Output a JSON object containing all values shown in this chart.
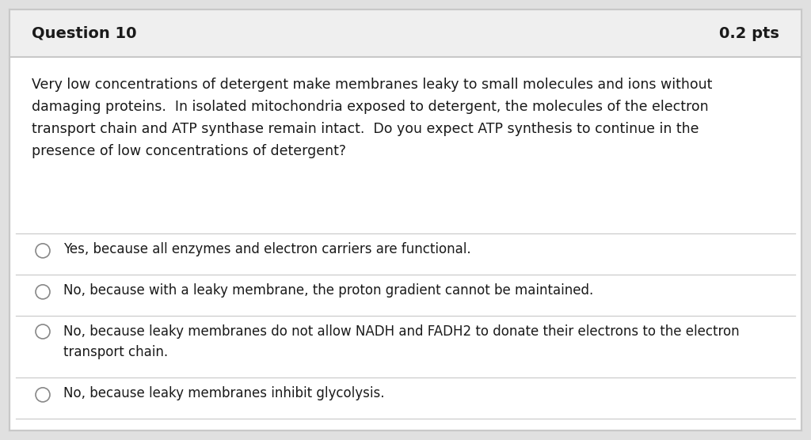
{
  "title_left": "Question 10",
  "title_right": "0.2 pts",
  "header_bg": "#efefef",
  "body_bg": "#ffffff",
  "outer_bg": "#e0e0e0",
  "border_color": "#c8c8c8",
  "title_font_size": 14,
  "body_font_size": 12.5,
  "option_font_size": 12,
  "question_lines": [
    "Very low concentrations of detergent make membranes leaky to small molecules and ions without",
    "damaging proteins.  In isolated mitochondria exposed to detergent, the molecules of the electron",
    "transport chain and ATP synthase remain intact.  Do you expect ATP synthesis to continue in the",
    "presence of low concentrations of detergent?"
  ],
  "options": [
    [
      "Yes, because all enzymes and electron carriers are functional."
    ],
    [
      "No, because with a leaky membrane, the proton gradient cannot be maintained."
    ],
    [
      "No, because leaky membranes do not allow NADH and FADH2 to donate their electrons to the electron",
      "transport chain."
    ],
    [
      "No, because leaky membranes inhibit glycolysis."
    ]
  ],
  "text_color": "#1a1a1a",
  "separator_color": "#cccccc",
  "radio_color": "#888888"
}
